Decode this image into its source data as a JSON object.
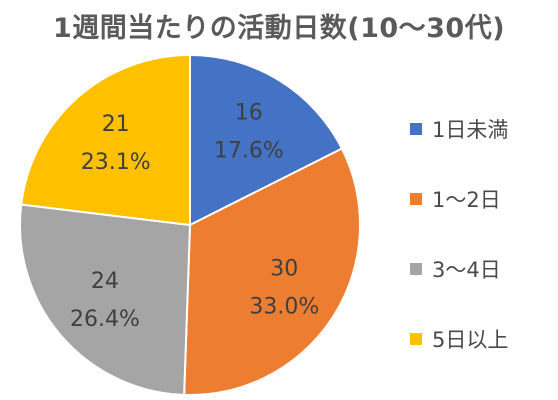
{
  "chart_data": {
    "type": "pie",
    "title": "1週間当たりの活動日数(10～30代)",
    "categories": [
      "1日未満",
      "1～2日",
      "3～4日",
      "5日以上"
    ],
    "values": [
      16,
      30,
      24,
      21
    ],
    "percentages": [
      "17.6%",
      "33.0%",
      "26.4%",
      "23.1%"
    ],
    "colors": [
      "#4472c4",
      "#ed7d31",
      "#a5a5a5",
      "#ffc000"
    ],
    "legend_position": "right",
    "label_color": "#404040",
    "start_angle_deg": 0,
    "direction": "clockwise"
  }
}
